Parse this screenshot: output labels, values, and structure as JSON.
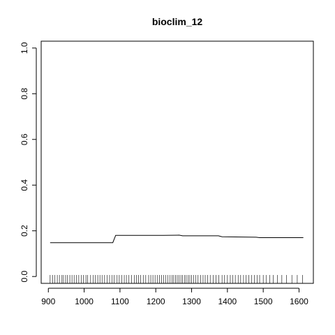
{
  "chart_data": {
    "type": "line",
    "title": "bioclim_12",
    "xlabel": "",
    "ylabel": "",
    "xlim": [
      880,
      1640
    ],
    "ylim": [
      -0.03,
      1.03
    ],
    "x_ticks": [
      900,
      1000,
      1100,
      1200,
      1300,
      1400,
      1500,
      1600
    ],
    "y_ticks": [
      0.0,
      0.2,
      0.4,
      0.6,
      0.8,
      1.0
    ],
    "x_tick_labels": [
      "900",
      "1000",
      "1100",
      "1200",
      "1300",
      "1400",
      "1500",
      "1600"
    ],
    "y_tick_labels": [
      "0.0",
      "0.2",
      "0.4",
      "0.6",
      "0.8",
      "1.0"
    ],
    "grid": false,
    "series": [
      {
        "x": [
          905,
          1080,
          1088,
          1140,
          1220,
          1265,
          1275,
          1375,
          1385,
          1480,
          1490,
          1612
        ],
        "y": [
          0.148,
          0.148,
          0.18,
          0.18,
          0.18,
          0.181,
          0.178,
          0.178,
          0.174,
          0.172,
          0.17,
          0.17
        ]
      }
    ],
    "rug": [
      905,
      912,
      918,
      925,
      931,
      938,
      942,
      948,
      953,
      960,
      966,
      972,
      978,
      985,
      992,
      998,
      1005,
      1010,
      1018,
      1025,
      1031,
      1038,
      1044,
      1050,
      1057,
      1064,
      1071,
      1078,
      1084,
      1092,
      1098,
      1105,
      1112,
      1118,
      1125,
      1132,
      1140,
      1146,
      1152,
      1158,
      1165,
      1172,
      1180,
      1186,
      1192,
      1198,
      1204,
      1210,
      1216,
      1222,
      1228,
      1234,
      1240,
      1245,
      1250,
      1255,
      1260,
      1265,
      1270,
      1275,
      1280,
      1285,
      1290,
      1295,
      1300,
      1306,
      1312,
      1318,
      1325,
      1332,
      1338,
      1345,
      1352,
      1360,
      1368,
      1376,
      1385,
      1392,
      1400,
      1408,
      1415,
      1422,
      1430,
      1437,
      1445,
      1452,
      1460,
      1468,
      1475,
      1483,
      1490,
      1500,
      1508,
      1518,
      1528,
      1540,
      1552,
      1565,
      1580,
      1595,
      1610
    ]
  }
}
